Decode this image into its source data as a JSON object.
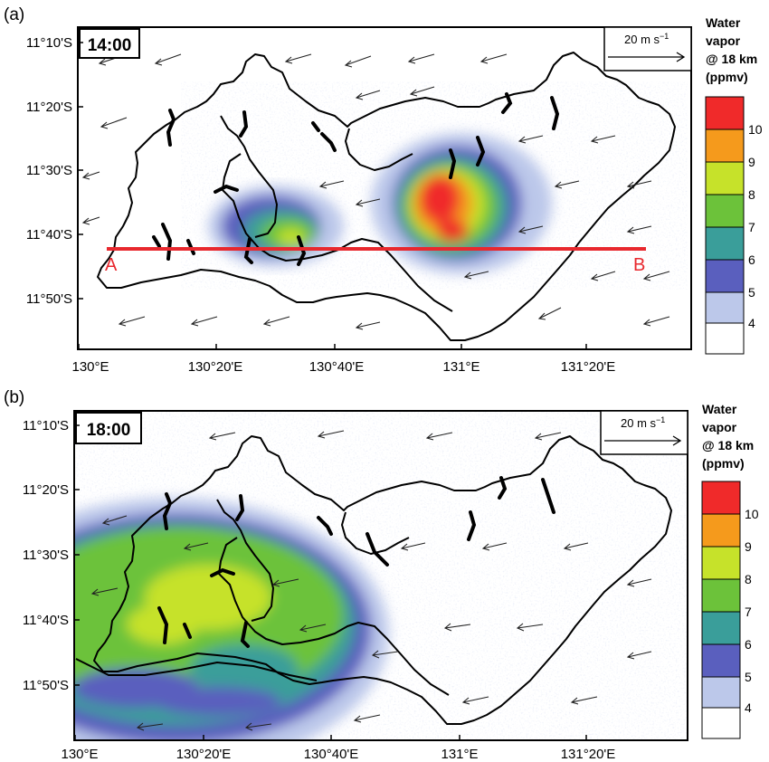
{
  "panels": [
    {
      "tag": "(a)",
      "time": "14:00",
      "scale_label": "20 m s",
      "scale_exp": "−1",
      "lat_ticks": [
        "11°10'S",
        "11°20'S",
        "11°30'S",
        "11°40'S",
        "11°50'S"
      ],
      "lon_ticks": [
        "130°E",
        "130°20'E",
        "130°40'E",
        "131°E",
        "131°20'E"
      ],
      "section": {
        "start_label": "A",
        "end_label": "B"
      },
      "legend": {
        "title": [
          "Water",
          "vapor",
          "@ 18 km",
          "(ppmv)"
        ],
        "levels": [
          "10",
          "9",
          "8",
          "7",
          "6",
          "5",
          "4"
        ],
        "colors": [
          "#f02a2a",
          "#f59a1c",
          "#c6e22a",
          "#6cc23a",
          "#3a9e9a",
          "#5a5fbe",
          "#bcc8ea",
          "#ffffff"
        ]
      }
    },
    {
      "tag": "(b)",
      "time": "18:00",
      "scale_label": "20 m s",
      "scale_exp": "−1",
      "lat_ticks": [
        "11°10'S",
        "11°20'S",
        "11°30'S",
        "11°40'S",
        "11°50'S"
      ],
      "lon_ticks": [
        "130°E",
        "130°20'E",
        "130°40'E",
        "131°E",
        "131°20'E"
      ],
      "legend": {
        "title": [
          "Water",
          "vapor",
          "@ 18 km",
          "(ppmv)"
        ],
        "levels": [
          "10",
          "9",
          "8",
          "7",
          "6",
          "5",
          "4"
        ],
        "colors": [
          "#f02a2a",
          "#f59a1c",
          "#c6e22a",
          "#6cc23a",
          "#3a9e9a",
          "#5a5fbe",
          "#bcc8ea",
          "#ffffff"
        ]
      }
    }
  ],
  "colors": {
    "section_line": "#e8282e",
    "coast": "#000000",
    "wind": "#222222"
  }
}
